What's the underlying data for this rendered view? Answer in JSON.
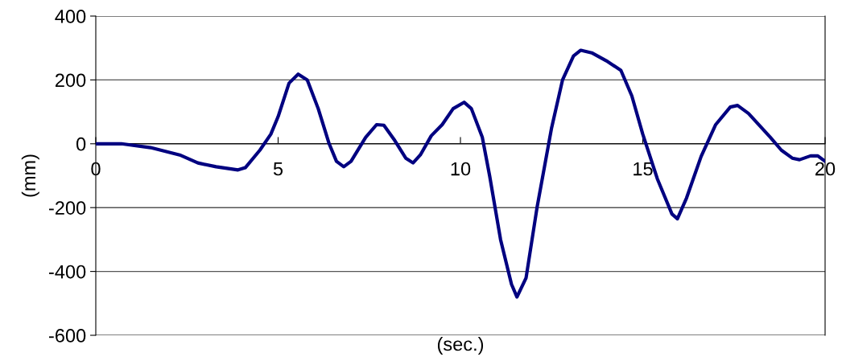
{
  "chart_data": {
    "type": "line",
    "xlabel": "(sec.)",
    "ylabel": "(mm)",
    "xlim": [
      0,
      20
    ],
    "xticks": [
      0,
      5,
      10,
      15,
      20
    ],
    "ylim": [
      -600,
      400
    ],
    "yticks": [
      -600,
      -400,
      -200,
      0,
      200,
      400
    ],
    "grid": "y",
    "legend": false,
    "series": [
      {
        "color": "#000080",
        "x": [
          0,
          0.7,
          1.5,
          2.3,
          2.8,
          3.3,
          3.9,
          4.1,
          4.5,
          4.8,
          5.0,
          5.3,
          5.55,
          5.8,
          6.1,
          6.4,
          6.6,
          6.8,
          7.0,
          7.4,
          7.7,
          7.9,
          8.2,
          8.5,
          8.7,
          8.9,
          9.2,
          9.5,
          9.8,
          10.1,
          10.3,
          10.6,
          10.8,
          11.1,
          11.4,
          11.55,
          11.8,
          12.1,
          12.5,
          12.8,
          13.1,
          13.3,
          13.6,
          14.0,
          14.4,
          14.7,
          15.0,
          15.4,
          15.8,
          15.95,
          16.2,
          16.6,
          17.0,
          17.4,
          17.6,
          17.9,
          18.5,
          18.8,
          19.1,
          19.3,
          19.6,
          19.8,
          20
        ],
        "values": [
          0,
          0,
          -12,
          -35,
          -60,
          -72,
          -82,
          -75,
          -20,
          30,
          85,
          190,
          218,
          200,
          110,
          0,
          -55,
          -72,
          -55,
          20,
          60,
          58,
          10,
          -45,
          -60,
          -35,
          25,
          60,
          110,
          130,
          110,
          20,
          -100,
          -300,
          -440,
          -480,
          -420,
          -200,
          50,
          200,
          275,
          293,
          285,
          260,
          230,
          150,
          30,
          -110,
          -220,
          -235,
          -170,
          -40,
          60,
          115,
          120,
          95,
          20,
          -20,
          -45,
          -50,
          -38,
          -38,
          -55
        ]
      }
    ]
  }
}
